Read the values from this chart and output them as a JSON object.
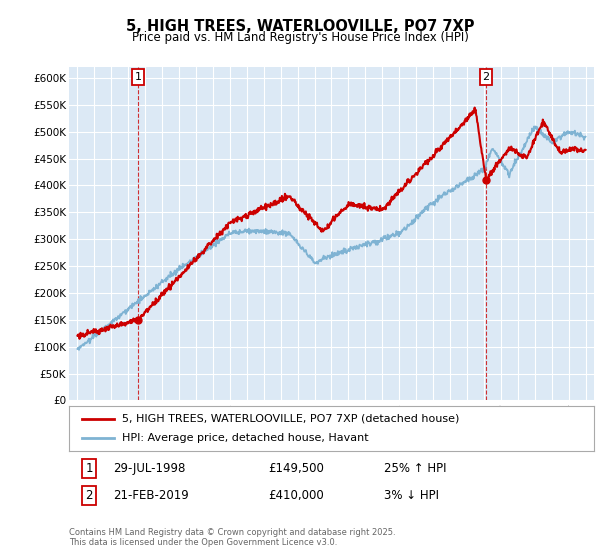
{
  "title": "5, HIGH TREES, WATERLOOVILLE, PO7 7XP",
  "subtitle": "Price paid vs. HM Land Registry's House Price Index (HPI)",
  "fig_bg_color": "#ffffff",
  "plot_bg_color": "#dce9f5",
  "red_color": "#cc0000",
  "blue_color": "#7fb3d3",
  "grid_color": "#ffffff",
  "ylim": [
    0,
    620000
  ],
  "yticks": [
    0,
    50000,
    100000,
    150000,
    200000,
    250000,
    300000,
    350000,
    400000,
    450000,
    500000,
    550000,
    600000
  ],
  "ytick_labels": [
    "£0",
    "£50K",
    "£100K",
    "£150K",
    "£200K",
    "£250K",
    "£300K",
    "£350K",
    "£400K",
    "£450K",
    "£500K",
    "£550K",
    "£600K"
  ],
  "xlim_start": 1994.5,
  "xlim_end": 2025.5,
  "sale1_year": 1998.57,
  "sale1_price": 149500,
  "sale2_year": 2019.13,
  "sale2_price": 410000,
  "legend_label_red": "5, HIGH TREES, WATERLOOVILLE, PO7 7XP (detached house)",
  "legend_label_blue": "HPI: Average price, detached house, Havant",
  "annotation1_date": "29-JUL-1998",
  "annotation1_price": "£149,500",
  "annotation1_hpi": "25% ↑ HPI",
  "annotation2_date": "21-FEB-2019",
  "annotation2_price": "£410,000",
  "annotation2_hpi": "3% ↓ HPI",
  "footer": "Contains HM Land Registry data © Crown copyright and database right 2025.\nThis data is licensed under the Open Government Licence v3.0."
}
